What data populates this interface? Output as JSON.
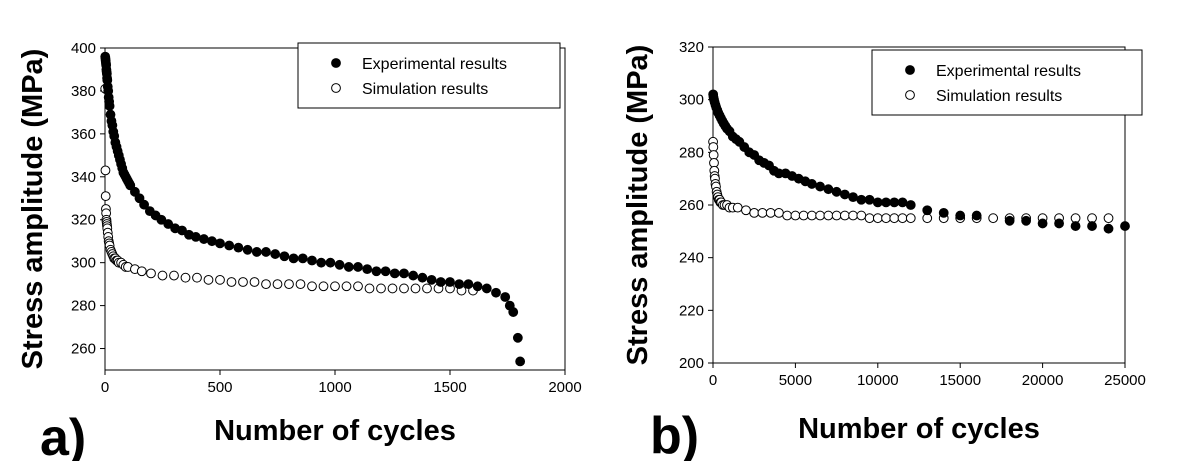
{
  "chart_data": [
    {
      "panel_label": "a)",
      "type": "scatter",
      "xlabel": "Number of cycles",
      "ylabel": "Stress amplitude (MPa)",
      "xlim": [
        0,
        2000
      ],
      "ylim": [
        250,
        400
      ],
      "xticks": [
        0,
        500,
        1000,
        1500,
        2000
      ],
      "yticks": [
        260,
        280,
        300,
        320,
        340,
        360,
        380,
        400
      ],
      "legend_position": "top-right",
      "series": [
        {
          "name": "Experimental results",
          "marker": "filled-circle",
          "points": [
            [
              1,
              396
            ],
            [
              2,
              395
            ],
            [
              3,
              394
            ],
            [
              4,
              393
            ],
            [
              5,
              392
            ],
            [
              6,
              390
            ],
            [
              7,
              389
            ],
            [
              8,
              388
            ],
            [
              9,
              386
            ],
            [
              10,
              385
            ],
            [
              12,
              382
            ],
            [
              14,
              380
            ],
            [
              16,
              377
            ],
            [
              18,
              375
            ],
            [
              20,
              373
            ],
            [
              24,
              369
            ],
            [
              28,
              366
            ],
            [
              32,
              364
            ],
            [
              36,
              361
            ],
            [
              40,
              359
            ],
            [
              45,
              356
            ],
            [
              50,
              354
            ],
            [
              55,
              352
            ],
            [
              60,
              350
            ],
            [
              65,
              348
            ],
            [
              70,
              346
            ],
            [
              75,
              344
            ],
            [
              80,
              342
            ],
            [
              85,
              341
            ],
            [
              90,
              340
            ],
            [
              95,
              339
            ],
            [
              100,
              338
            ],
            [
              105,
              337
            ],
            [
              110,
              336
            ],
            [
              130,
              333
            ],
            [
              150,
              330
            ],
            [
              170,
              327
            ],
            [
              195,
              324
            ],
            [
              220,
              322
            ],
            [
              245,
              320
            ],
            [
              275,
              318
            ],
            [
              305,
              316
            ],
            [
              335,
              315
            ],
            [
              365,
              313
            ],
            [
              395,
              312
            ],
            [
              430,
              311
            ],
            [
              465,
              310
            ],
            [
              500,
              309
            ],
            [
              540,
              308
            ],
            [
              580,
              307
            ],
            [
              620,
              306
            ],
            [
              660,
              305
            ],
            [
              700,
              305
            ],
            [
              740,
              304
            ],
            [
              780,
              303
            ],
            [
              820,
              302
            ],
            [
              860,
              302
            ],
            [
              900,
              301
            ],
            [
              940,
              300
            ],
            [
              980,
              300
            ],
            [
              1020,
              299
            ],
            [
              1060,
              298
            ],
            [
              1100,
              298
            ],
            [
              1140,
              297
            ],
            [
              1180,
              296
            ],
            [
              1220,
              296
            ],
            [
              1260,
              295
            ],
            [
              1300,
              295
            ],
            [
              1340,
              294
            ],
            [
              1380,
              293
            ],
            [
              1420,
              292
            ],
            [
              1460,
              291
            ],
            [
              1500,
              291
            ],
            [
              1540,
              290
            ],
            [
              1580,
              290
            ],
            [
              1620,
              289
            ],
            [
              1660,
              288
            ],
            [
              1700,
              286
            ],
            [
              1740,
              284
            ],
            [
              1760,
              280
            ],
            [
              1775,
              277
            ],
            [
              1795,
              265
            ],
            [
              1805,
              254
            ]
          ]
        },
        {
          "name": "Simulation results",
          "marker": "open-circle",
          "points": [
            [
              1,
              381
            ],
            [
              2,
              343
            ],
            [
              3,
              331
            ],
            [
              4,
              325
            ],
            [
              5,
              323
            ],
            [
              6,
              320
            ],
            [
              7,
              319
            ],
            [
              8,
              318
            ],
            [
              9,
              317
            ],
            [
              10,
              316
            ],
            [
              12,
              314
            ],
            [
              14,
              312
            ],
            [
              16,
              310
            ],
            [
              18,
              309
            ],
            [
              20,
              308
            ],
            [
              24,
              306
            ],
            [
              28,
              305
            ],
            [
              32,
              304
            ],
            [
              36,
              303
            ],
            [
              40,
              302
            ],
            [
              45,
              302
            ],
            [
              50,
              301
            ],
            [
              55,
              301
            ],
            [
              60,
              300
            ],
            [
              70,
              300
            ],
            [
              80,
              299
            ],
            [
              90,
              298
            ],
            [
              100,
              298
            ],
            [
              130,
              297
            ],
            [
              160,
              296
            ],
            [
              200,
              295
            ],
            [
              250,
              294
            ],
            [
              300,
              294
            ],
            [
              350,
              293
            ],
            [
              400,
              293
            ],
            [
              450,
              292
            ],
            [
              500,
              292
            ],
            [
              550,
              291
            ],
            [
              600,
              291
            ],
            [
              650,
              291
            ],
            [
              700,
              290
            ],
            [
              750,
              290
            ],
            [
              800,
              290
            ],
            [
              850,
              290
            ],
            [
              900,
              289
            ],
            [
              950,
              289
            ],
            [
              1000,
              289
            ],
            [
              1050,
              289
            ],
            [
              1100,
              289
            ],
            [
              1150,
              288
            ],
            [
              1200,
              288
            ],
            [
              1250,
              288
            ],
            [
              1300,
              288
            ],
            [
              1350,
              288
            ],
            [
              1400,
              288
            ],
            [
              1450,
              288
            ],
            [
              1500,
              288
            ],
            [
              1550,
              287
            ],
            [
              1600,
              287
            ]
          ]
        }
      ]
    },
    {
      "panel_label": "b)",
      "type": "scatter",
      "xlabel": "Number of cycles",
      "ylabel": "Stress amplitude (MPa)",
      "xlim": [
        0,
        25000
      ],
      "ylim": [
        200,
        320
      ],
      "xticks": [
        0,
        5000,
        10000,
        15000,
        20000,
        25000
      ],
      "yticks": [
        200,
        220,
        240,
        260,
        280,
        300,
        320
      ],
      "legend_position": "top-right",
      "series": [
        {
          "name": "Experimental results",
          "marker": "filled-circle",
          "points": [
            [
              10,
              302
            ],
            [
              30,
              301
            ],
            [
              60,
              300
            ],
            [
              100,
              299
            ],
            [
              150,
              298
            ],
            [
              200,
              297
            ],
            [
              260,
              296
            ],
            [
              320,
              295
            ],
            [
              400,
              294
            ],
            [
              480,
              293
            ],
            [
              560,
              292
            ],
            [
              650,
              291
            ],
            [
              750,
              290
            ],
            [
              850,
              289
            ],
            [
              1000,
              288
            ],
            [
              1200,
              286
            ],
            [
              1400,
              285
            ],
            [
              1600,
              284
            ],
            [
              1900,
              282
            ],
            [
              2200,
              280
            ],
            [
              2500,
              279
            ],
            [
              2800,
              277
            ],
            [
              3100,
              276
            ],
            [
              3400,
              275
            ],
            [
              3700,
              273
            ],
            [
              4000,
              272
            ],
            [
              4400,
              272
            ],
            [
              4800,
              271
            ],
            [
              5200,
              270
            ],
            [
              5600,
              269
            ],
            [
              6000,
              268
            ],
            [
              6500,
              267
            ],
            [
              7000,
              266
            ],
            [
              7500,
              265
            ],
            [
              8000,
              264
            ],
            [
              8500,
              263
            ],
            [
              9000,
              262
            ],
            [
              9500,
              262
            ],
            [
              10000,
              261
            ],
            [
              10500,
              261
            ],
            [
              11000,
              261
            ],
            [
              11500,
              261
            ],
            [
              12000,
              260
            ],
            [
              13000,
              258
            ],
            [
              14000,
              257
            ],
            [
              15000,
              256
            ],
            [
              16000,
              256
            ],
            [
              18000,
              254
            ],
            [
              19000,
              254
            ],
            [
              20000,
              253
            ],
            [
              21000,
              253
            ],
            [
              22000,
              252
            ],
            [
              23000,
              252
            ],
            [
              24000,
              251
            ],
            [
              25000,
              252
            ]
          ]
        },
        {
          "name": "Simulation results",
          "marker": "open-circle",
          "points": [
            [
              5,
              284
            ],
            [
              20,
              282
            ],
            [
              40,
              279
            ],
            [
              60,
              276
            ],
            [
              80,
              273
            ],
            [
              100,
              271
            ],
            [
              120,
              270
            ],
            [
              150,
              268
            ],
            [
              180,
              267
            ],
            [
              220,
              265
            ],
            [
              260,
              264
            ],
            [
              300,
              263
            ],
            [
              350,
              262
            ],
            [
              400,
              262
            ],
            [
              450,
              261
            ],
            [
              500,
              261
            ],
            [
              600,
              260
            ],
            [
              700,
              260
            ],
            [
              850,
              260
            ],
            [
              1000,
              259
            ],
            [
              1200,
              259
            ],
            [
              1500,
              259
            ],
            [
              2000,
              258
            ],
            [
              2500,
              257
            ],
            [
              3000,
              257
            ],
            [
              3500,
              257
            ],
            [
              4000,
              257
            ],
            [
              4500,
              256
            ],
            [
              5000,
              256
            ],
            [
              5500,
              256
            ],
            [
              6000,
              256
            ],
            [
              6500,
              256
            ],
            [
              7000,
              256
            ],
            [
              7500,
              256
            ],
            [
              8000,
              256
            ],
            [
              8500,
              256
            ],
            [
              9000,
              256
            ],
            [
              9500,
              255
            ],
            [
              10000,
              255
            ],
            [
              10500,
              255
            ],
            [
              11000,
              255
            ],
            [
              11500,
              255
            ],
            [
              12000,
              255
            ],
            [
              13000,
              255
            ],
            [
              14000,
              255
            ],
            [
              15000,
              255
            ],
            [
              16000,
              255
            ],
            [
              17000,
              255
            ],
            [
              18000,
              255
            ],
            [
              19000,
              255
            ],
            [
              20000,
              255
            ],
            [
              21000,
              255
            ],
            [
              22000,
              255
            ],
            [
              23000,
              255
            ],
            [
              24000,
              255
            ]
          ]
        }
      ]
    }
  ]
}
